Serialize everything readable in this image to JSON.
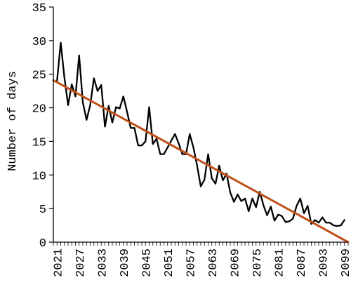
{
  "chart_data": {
    "type": "line",
    "title": "",
    "xlabel": "",
    "ylabel": "Number of days",
    "xlim": [
      2020,
      2100
    ],
    "ylim": [
      0,
      35
    ],
    "grid": false,
    "legend": "none",
    "yticks": [
      "0",
      "5",
      "10",
      "15",
      "20",
      "25",
      "30",
      "35"
    ],
    "xticks": [
      "2021",
      "2027",
      "2033",
      "2039",
      "2045",
      "2051",
      "2057",
      "2063",
      "2069",
      "2075",
      "2081",
      "2087",
      "2093",
      "2099"
    ],
    "series": [
      {
        "type": "line",
        "color": "#000000",
        "x": [
          2021,
          2022,
          2023,
          2024,
          2025,
          2026,
          2027,
          2028,
          2029,
          2030,
          2031,
          2032,
          2033,
          2034,
          2035,
          2036,
          2037,
          2038,
          2039,
          2040,
          2041,
          2042,
          2043,
          2044,
          2045,
          2046,
          2047,
          2048,
          2049,
          2050,
          2051,
          2052,
          2053,
          2054,
          2055,
          2056,
          2057,
          2058,
          2059,
          2060,
          2061,
          2062,
          2063,
          2064,
          2065,
          2066,
          2067,
          2068,
          2069,
          2070,
          2071,
          2072,
          2073,
          2074,
          2075,
          2076,
          2077,
          2078,
          2079,
          2080,
          2081,
          2082,
          2083,
          2084,
          2085,
          2086,
          2087,
          2088,
          2089,
          2090,
          2091,
          2092,
          2093,
          2094,
          2095,
          2096,
          2097,
          2098,
          2099
        ],
        "y": [
          24.0,
          29.7,
          24.5,
          20.4,
          23.5,
          21.7,
          27.8,
          20.8,
          18.2,
          20.4,
          24.4,
          22.5,
          23.4,
          17.2,
          20.3,
          17.8,
          20.1,
          19.9,
          21.7,
          19.4,
          17.0,
          17.0,
          14.4,
          14.4,
          15.0,
          20.1,
          14.6,
          15.4,
          13.1,
          13.1,
          14.1,
          15.1,
          16.1,
          14.7,
          13.1,
          13.1,
          16.1,
          14.1,
          11.4,
          8.3,
          9.3,
          13.1,
          9.5,
          8.7,
          11.4,
          9.2,
          10.2,
          7.4,
          6.0,
          7.1,
          6.1,
          6.5,
          4.6,
          6.5,
          5.2,
          7.5,
          5.5,
          4.0,
          5.3,
          3.2,
          4.1,
          3.9,
          3.0,
          3.1,
          3.5,
          5.4,
          6.5,
          4.3,
          5.4,
          2.7,
          3.3,
          2.9,
          3.7,
          2.9,
          2.9,
          2.5,
          2.4,
          2.5,
          3.3
        ]
      },
      {
        "type": "trend",
        "color": "#C0501A",
        "x": [
          2020,
          2100
        ],
        "y": [
          24.1,
          0.0
        ]
      }
    ]
  }
}
